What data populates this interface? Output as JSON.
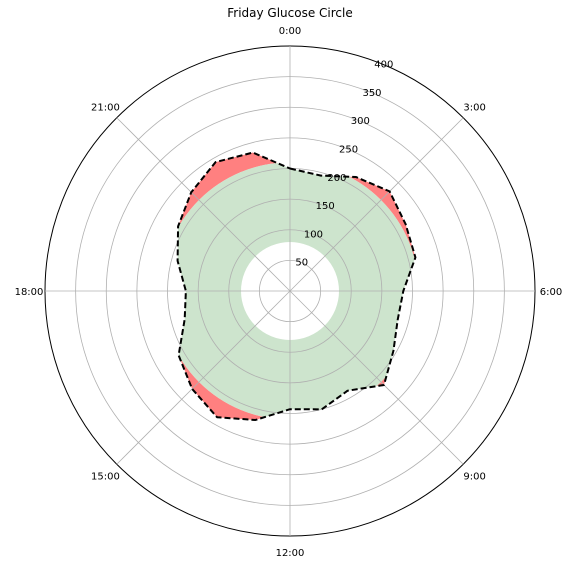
{
  "chart_data": {
    "type": "polar-line",
    "title": "Friday Glucose Circle",
    "angle_ticks": [
      "0:00",
      "3:00",
      "6:00",
      "9:00",
      "12:00",
      "15:00",
      "18:00",
      "21:00"
    ],
    "radial_ticks": [
      50,
      100,
      150,
      200,
      250,
      300,
      350,
      400
    ],
    "rlim": [
      0,
      400
    ],
    "grid": true,
    "direction": "clockwise",
    "zero_location": "top",
    "target_range": [
      80,
      210
    ],
    "colors": {
      "target_band": "#cde4cd",
      "out_of_range": "#ff8080",
      "line": "#000000"
    },
    "series": [
      {
        "hours": [
          0,
          1,
          2,
          3,
          4,
          5,
          6,
          7,
          8,
          9,
          10,
          11,
          12,
          13,
          14,
          15,
          16,
          17,
          18,
          19,
          20,
          21,
          22,
          23
        ],
        "values": [
          200,
          195,
          215,
          230,
          218,
          212,
          185,
          182,
          195,
          217,
          188,
          200,
          193,
          218,
          238,
          226,
          210,
          178,
          170,
          190,
          211,
          228,
          243,
          234
        ]
      }
    ]
  }
}
